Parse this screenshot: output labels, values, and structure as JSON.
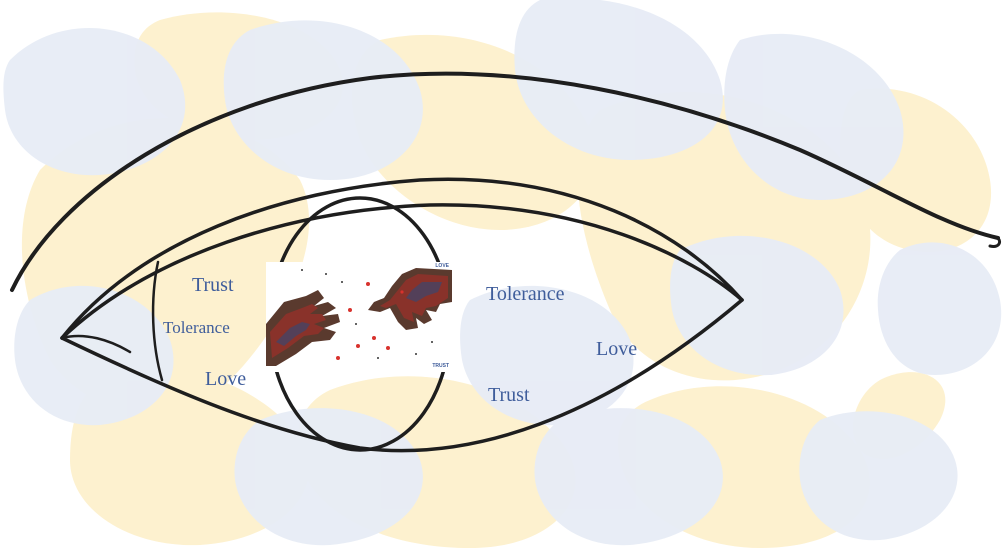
{
  "palette": {
    "blue_wash": "#e7ecf6",
    "yellow_wash": "#fdf1cf",
    "line": "#1e1e1e",
    "word_color": "#3f5d9b",
    "heart": "#d8322d"
  },
  "words": {
    "trust_left": "Trust",
    "tolerance_left": "Tolerance",
    "love_left": "Love",
    "tolerance_right": "Tolerance",
    "love_right": "Love",
    "trust_right": "Trust"
  },
  "photo": {
    "tag_love": "LOVE",
    "tag_trust": "TRUST",
    "icons": [
      "crowd-hand-left-icon",
      "crowd-hand-right-icon",
      "heart-icon"
    ]
  }
}
